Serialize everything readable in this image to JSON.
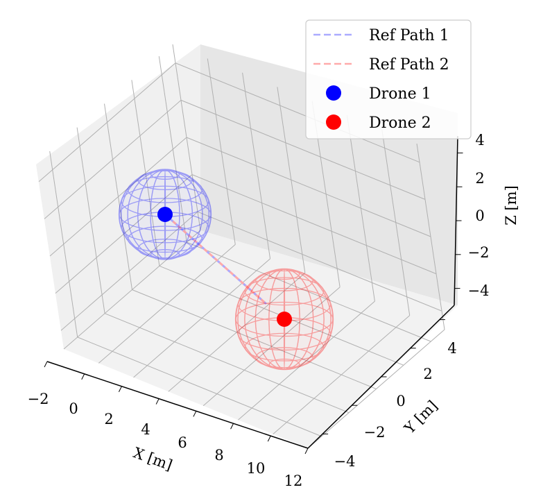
{
  "chart_data": {
    "type": "scatter",
    "projection": "3d",
    "xlabel": "X [m]",
    "ylabel": "Y [m]",
    "zlabel": "Z [m]",
    "xticks": [
      "−2",
      "0",
      "2",
      "4",
      "6",
      "8",
      "10",
      "12"
    ],
    "yticks": [
      "−4",
      "−2",
      "0",
      "2",
      "4"
    ],
    "zticks": [
      "−4",
      "−2",
      "0",
      "2",
      "4"
    ],
    "xlim": [
      -2,
      12
    ],
    "ylim": [
      -5,
      5
    ],
    "zlim": [
      -5,
      5
    ],
    "grid": true,
    "legend_position": "top-right",
    "legend": [
      {
        "label": "Ref Path 1",
        "kind": "dashed-line",
        "color": "#aaaaff"
      },
      {
        "label": "Ref Path 2",
        "kind": "dashed-line",
        "color": "#ffaaaa"
      },
      {
        "label": "Drone 1",
        "kind": "marker",
        "color": "#0000ff"
      },
      {
        "label": "Drone 2",
        "kind": "marker",
        "color": "#ff0000"
      }
    ],
    "series": [
      {
        "name": "Drone 1",
        "point": {
          "x": 0,
          "y": 0,
          "z": 0
        },
        "sphere_radius": 2.5,
        "color": "#0000ff"
      },
      {
        "name": "Drone 2",
        "point": {
          "x": 10,
          "y": 0,
          "z": 0
        },
        "sphere_radius": 2.5,
        "color": "#ff0000"
      }
    ]
  }
}
